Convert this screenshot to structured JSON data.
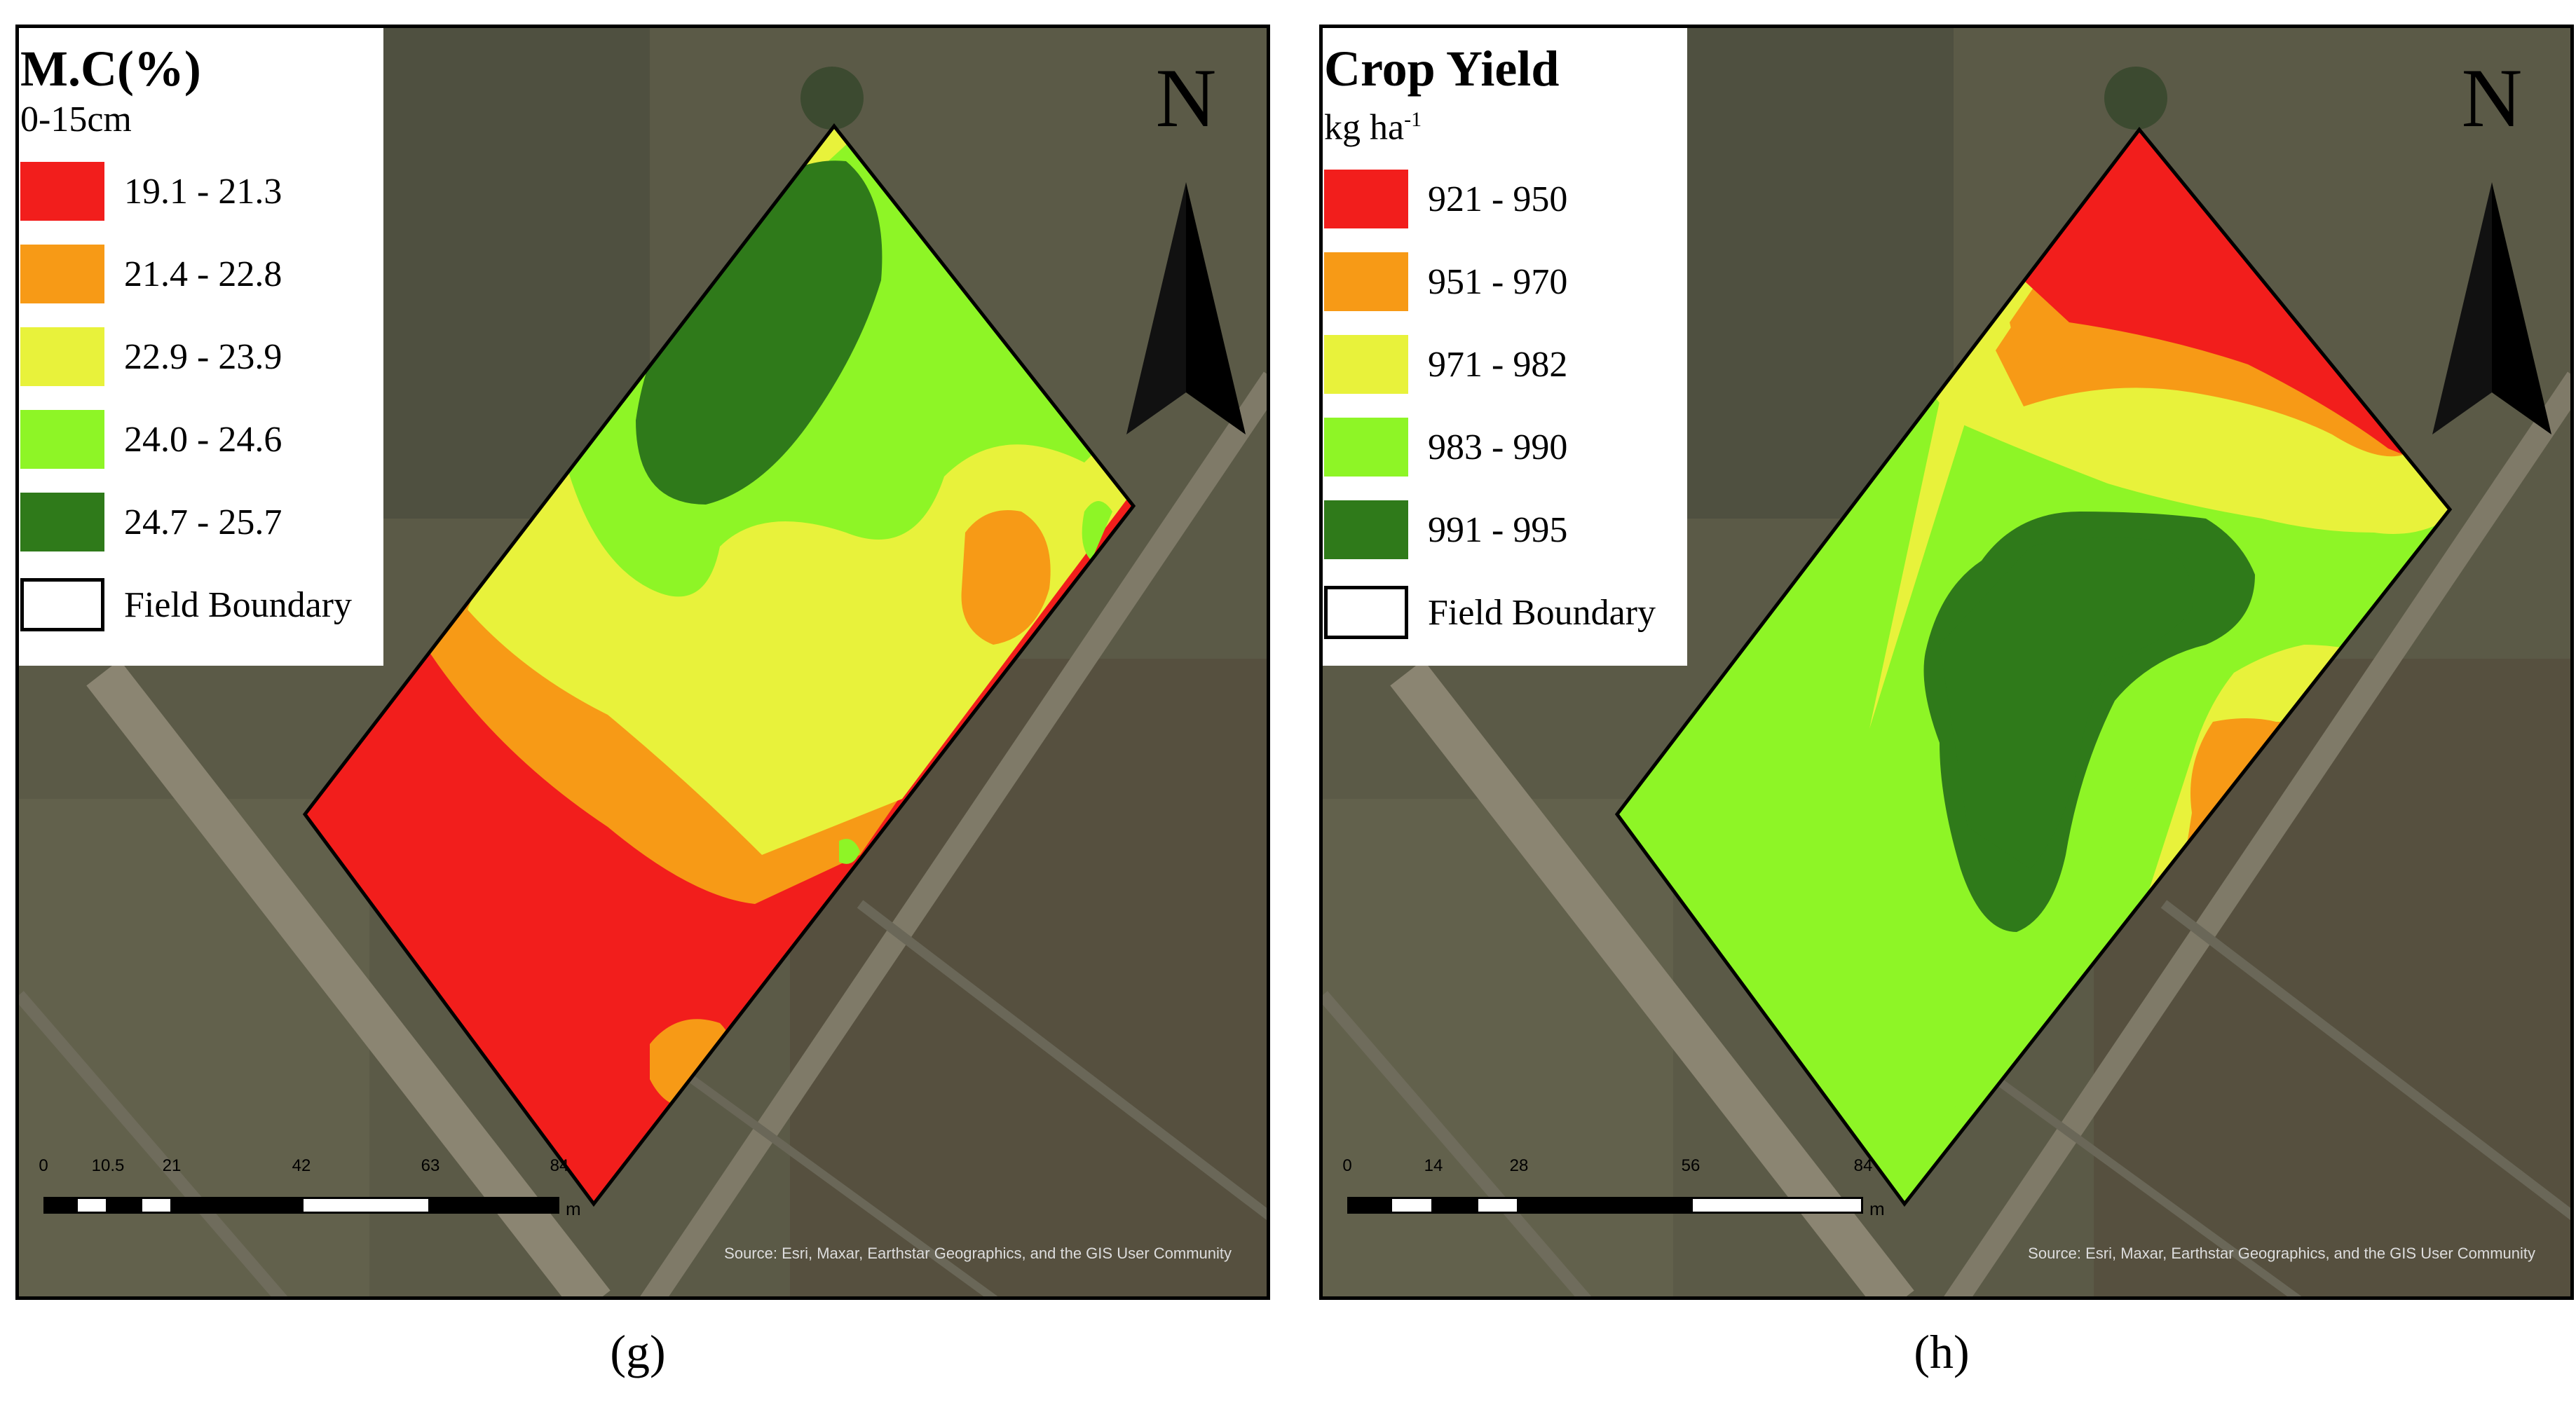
{
  "panels": [
    {
      "legend": {
        "title": "M.C(%)",
        "subtitle": "0-15cm",
        "classes": [
          {
            "label": "19.1 - 21.3",
            "color": "#f21e1c"
          },
          {
            "label": "21.4 - 22.8",
            "color": "#f79a16"
          },
          {
            "label": "22.9 - 23.9",
            "color": "#e8f23b"
          },
          {
            "label": "24.0 - 24.6",
            "color": "#8ef526"
          },
          {
            "label": "24.7 - 25.7",
            "color": "#2f7a1a"
          }
        ],
        "boundary_label": "Field Boundary"
      },
      "north_label": "N",
      "scale": {
        "ticks": [
          "0",
          "10.5",
          "21",
          "42",
          "63",
          "84"
        ],
        "unit": "m"
      },
      "credit": "Source: Esri, Maxar, Earthstar Geographics, and the GIS User Community",
      "caption": "(g)"
    },
    {
      "legend": {
        "title": "Crop Yield",
        "subtitle": "kg ha",
        "subtitle_sup": "-1",
        "classes": [
          {
            "label": "921 - 950",
            "color": "#f21e1c"
          },
          {
            "label": "951 - 970",
            "color": "#f79a16"
          },
          {
            "label": "971 - 982",
            "color": "#e8f23b"
          },
          {
            "label": "983 - 990",
            "color": "#8ef526"
          },
          {
            "label": "991 - 995",
            "color": "#2f7a1a"
          }
        ],
        "boundary_label": "Field Boundary"
      },
      "north_label": "N",
      "scale": {
        "ticks": [
          "0",
          "14",
          "28",
          "56",
          "84"
        ],
        "unit": "m"
      },
      "credit": "Source: Esri, Maxar, Earthstar Geographics, and the GIS User Community",
      "caption": "(h)"
    }
  ]
}
